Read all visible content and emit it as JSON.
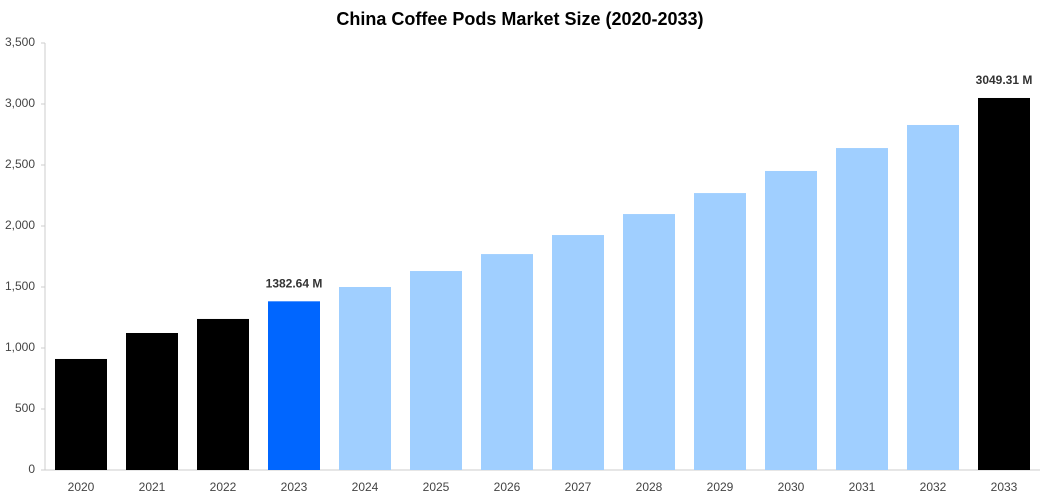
{
  "chart_data": {
    "type": "bar",
    "title": "China Coffee Pods Market Size (2020-2033)",
    "categories": [
      "2020",
      "2021",
      "2022",
      "2023",
      "2024",
      "2025",
      "2026",
      "2027",
      "2028",
      "2029",
      "2030",
      "2031",
      "2032",
      "2033"
    ],
    "values": [
      910,
      1123,
      1238,
      1382.64,
      1500,
      1631,
      1770,
      1926,
      2098,
      2270,
      2451,
      2639,
      2828,
      3049.31
    ],
    "value_labels": [
      null,
      null,
      null,
      "1382.64 M",
      null,
      null,
      null,
      null,
      null,
      null,
      null,
      null,
      null,
      "3049.31 M"
    ],
    "colors": [
      "#000000",
      "#000000",
      "#000000",
      "#0066ff",
      "#a0cfff",
      "#a0cfff",
      "#a0cfff",
      "#a0cfff",
      "#a0cfff",
      "#a0cfff",
      "#a0cfff",
      "#a0cfff",
      "#a0cfff",
      "#000000"
    ],
    "ylim": [
      0,
      3500
    ],
    "yticks": [
      0,
      500,
      {
        "value": 1000,
        "label": "1,000"
      },
      {
        "value": 1500,
        "label": "1,500"
      },
      {
        "value": 2000,
        "label": "2,000"
      },
      {
        "value": 2500,
        "label": "2,500"
      },
      {
        "value": 3000,
        "label": "3,000"
      },
      {
        "value": 3500,
        "label": "3,500"
      }
    ],
    "grid": false
  }
}
